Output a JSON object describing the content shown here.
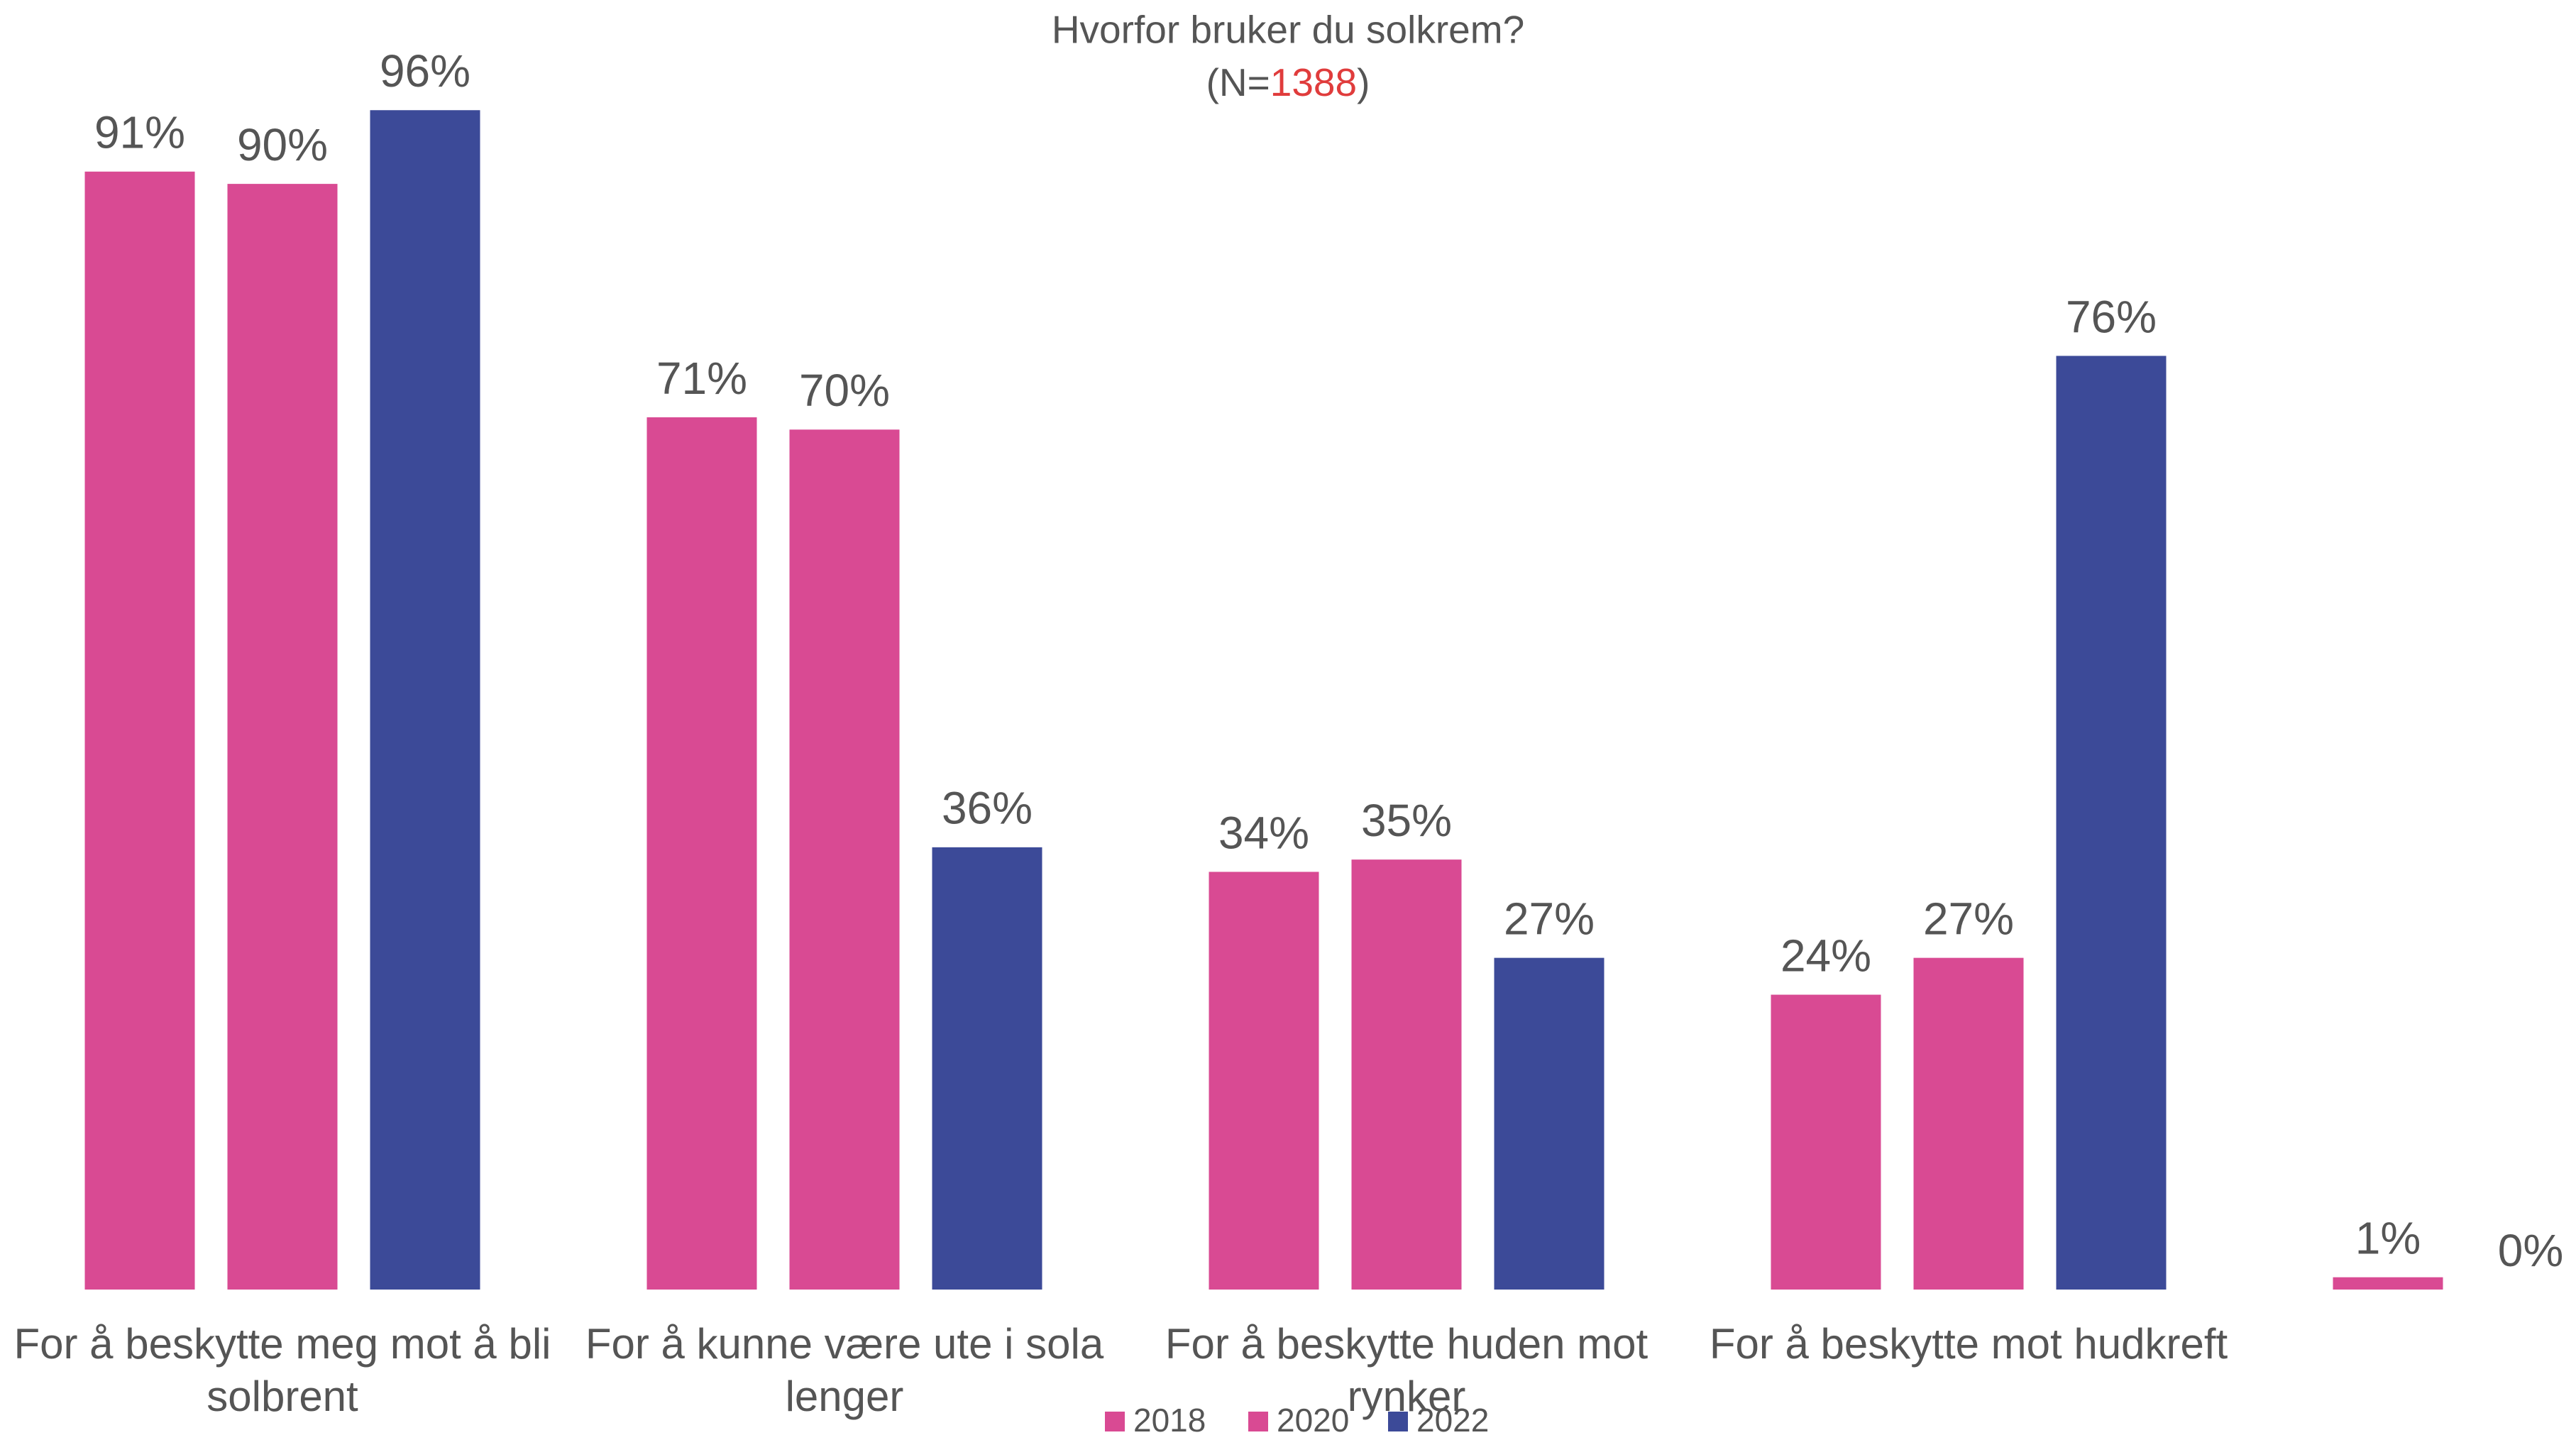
{
  "chart_data": {
    "type": "bar",
    "title": "Hvorfor bruker du solkrem?",
    "subtitle": [
      "(N=",
      "1388",
      ")"
    ],
    "categories": [
      "For å beskytte meg mot å bli solbrent",
      "For å kunne være ute i sola lenger",
      "For å beskytte huden mot rynker",
      "For å beskytte mot hudkreft",
      null
    ],
    "series": [
      {
        "name": "2018",
        "color": "#d94a93",
        "values": [
          91,
          71,
          34,
          24,
          1
        ],
        "value_labels": [
          "91%",
          "71%",
          "34%",
          "24%",
          "1%"
        ]
      },
      {
        "name": "2020",
        "color": "#d94a93",
        "values": [
          90,
          70,
          35,
          27,
          0
        ],
        "value_labels": [
          "90%",
          "70%",
          "35%",
          "27%",
          "0%"
        ]
      },
      {
        "name": "2022",
        "color": "#3c4a98",
        "values": [
          96,
          36,
          27,
          76,
          null
        ],
        "value_labels": [
          "96%",
          "36%",
          "27%",
          "76%",
          null
        ]
      }
    ],
    "ylim": [
      0,
      100
    ],
    "grid": false,
    "legend": "bottom"
  }
}
